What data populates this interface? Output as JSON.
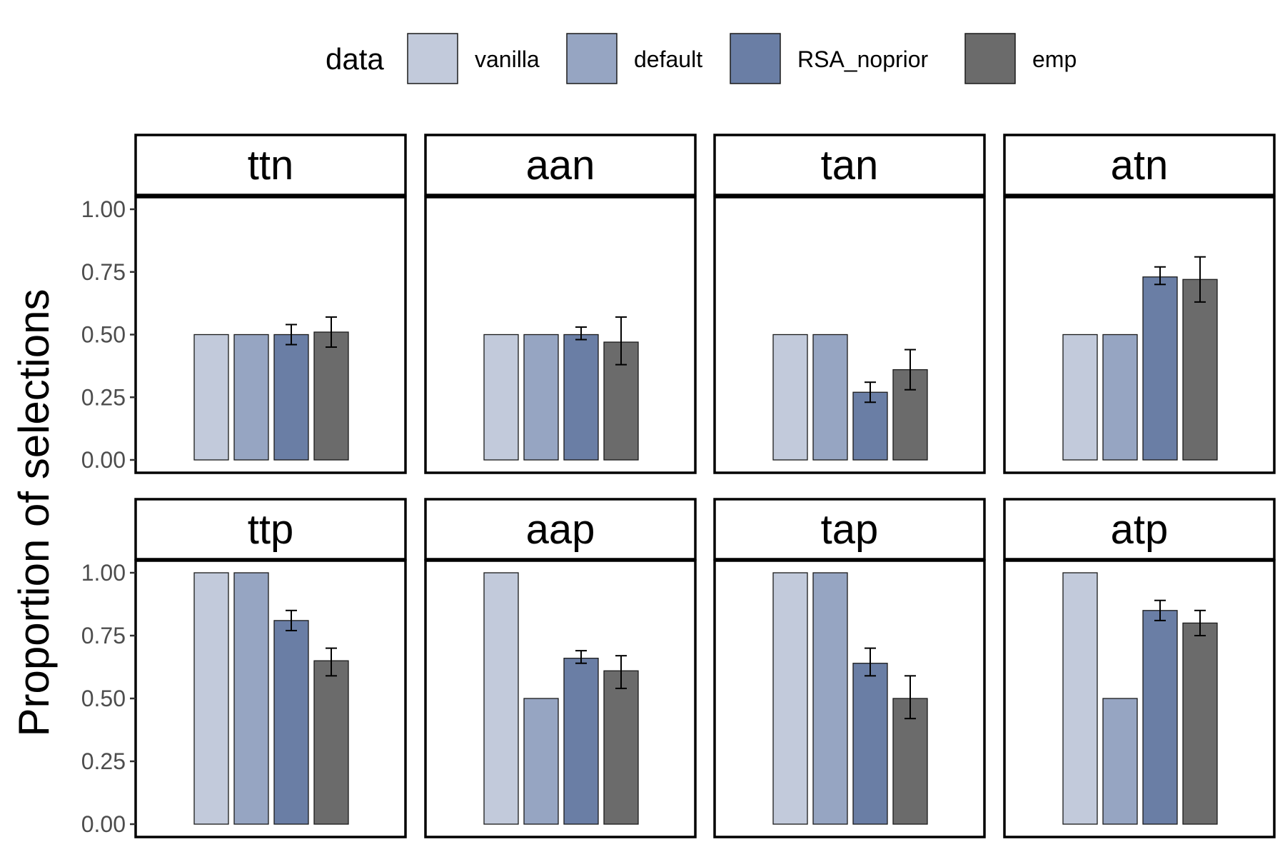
{
  "chart_data": {
    "type": "bar",
    "facet_layout": "2 rows x 4 columns",
    "ylabel": "Proportion of selections",
    "xlabel": "",
    "ylim": [
      0,
      1
    ],
    "yticks": [
      "0.00",
      "0.25",
      "0.50",
      "0.75",
      "1.00"
    ],
    "legend": {
      "title": "data",
      "position": "top",
      "entries": [
        "vanilla",
        "default",
        "RSA_noprior",
        "emp"
      ]
    },
    "grid": false,
    "series_colors": {
      "vanilla": "#c2cadb",
      "default": "#96a5c2",
      "RSA_noprior": "#6a7ea5",
      "emp": "#6b6b6b"
    },
    "panels": [
      {
        "label": "ttn",
        "values": {
          "vanilla": 0.5,
          "default": 0.5,
          "RSA_noprior": 0.5,
          "emp": 0.51
        },
        "errors": {
          "RSA_noprior": [
            0.46,
            0.54
          ],
          "emp": [
            0.45,
            0.57
          ]
        }
      },
      {
        "label": "aan",
        "values": {
          "vanilla": 0.5,
          "default": 0.5,
          "RSA_noprior": 0.5,
          "emp": 0.47
        },
        "errors": {
          "RSA_noprior": [
            0.48,
            0.53
          ],
          "emp": [
            0.38,
            0.57
          ]
        }
      },
      {
        "label": "tan",
        "values": {
          "vanilla": 0.5,
          "default": 0.5,
          "RSA_noprior": 0.27,
          "emp": 0.36
        },
        "errors": {
          "RSA_noprior": [
            0.23,
            0.31
          ],
          "emp": [
            0.28,
            0.44
          ]
        }
      },
      {
        "label": "atn",
        "values": {
          "vanilla": 0.5,
          "default": 0.5,
          "RSA_noprior": 0.73,
          "emp": 0.72
        },
        "errors": {
          "RSA_noprior": [
            0.7,
            0.77
          ],
          "emp": [
            0.63,
            0.81
          ]
        }
      },
      {
        "label": "ttp",
        "values": {
          "vanilla": 1.0,
          "default": 1.0,
          "RSA_noprior": 0.81,
          "emp": 0.65
        },
        "errors": {
          "RSA_noprior": [
            0.77,
            0.85
          ],
          "emp": [
            0.59,
            0.7
          ]
        }
      },
      {
        "label": "aap",
        "values": {
          "vanilla": 1.0,
          "default": 0.5,
          "RSA_noprior": 0.66,
          "emp": 0.61
        },
        "errors": {
          "RSA_noprior": [
            0.64,
            0.69
          ],
          "emp": [
            0.54,
            0.67
          ]
        }
      },
      {
        "label": "tap",
        "values": {
          "vanilla": 1.0,
          "default": 1.0,
          "RSA_noprior": 0.64,
          "emp": 0.5
        },
        "errors": {
          "RSA_noprior": [
            0.59,
            0.7
          ],
          "emp": [
            0.42,
            0.59
          ]
        }
      },
      {
        "label": "atp",
        "values": {
          "vanilla": 1.0,
          "default": 0.5,
          "RSA_noprior": 0.85,
          "emp": 0.8
        },
        "errors": {
          "RSA_noprior": [
            0.81,
            0.89
          ],
          "emp": [
            0.75,
            0.85
          ]
        }
      }
    ]
  }
}
